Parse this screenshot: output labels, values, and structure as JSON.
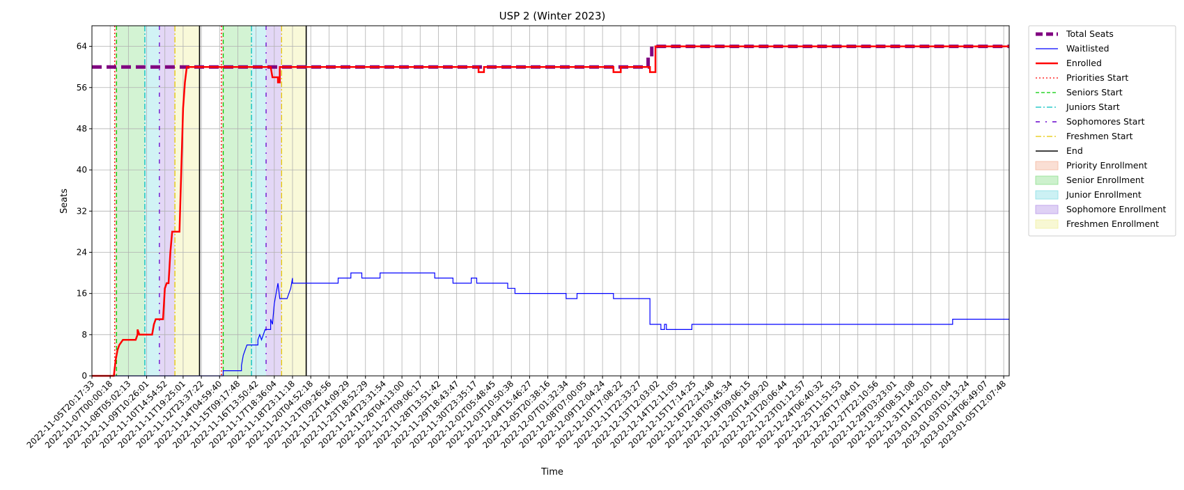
{
  "chart_data": {
    "type": "line",
    "title": "USP 2 (Winter 2023)",
    "xlabel": "Time",
    "ylabel": "Seats",
    "ylim": [
      0,
      68
    ],
    "yticks": [
      0,
      8,
      16,
      24,
      32,
      40,
      48,
      56,
      64
    ],
    "grid": true,
    "legend_placement": "outside-right",
    "x_tick_labels": [
      "2022-11-05T20:17:33",
      "2022-11-07T00:00:18",
      "2022-11-08T05:02:13",
      "2022-11-09T10:26:01",
      "2022-11-10T14:54:52",
      "2022-11-11T19:25:01",
      "2022-11-12T23:37:22",
      "2022-11-14T04:59:40",
      "2022-11-15T09:17:48",
      "2022-11-16T13:50:42",
      "2022-11-17T18:36:04",
      "2022-11-18T23:11:18",
      "2022-11-20T04:52:18",
      "2022-11-21T09:26:56",
      "2022-11-22T14:09:29",
      "2022-11-23T18:52:29",
      "2022-11-24T23:31:54",
      "2022-11-26T04:13:00",
      "2022-11-27T09:06:17",
      "2022-11-28T13:51:42",
      "2022-11-29T18:43:47",
      "2022-11-30T23:35:17",
      "2022-12-02T05:48:45",
      "2022-12-03T10:50:38",
      "2022-12-04T15:46:27",
      "2022-12-05T20:38:16",
      "2022-12-07T01:32:34",
      "2022-12-08T07:00:05",
      "2022-12-09T12:04:24",
      "2022-12-10T17:08:22",
      "2022-12-11T22:33:27",
      "2022-12-13T12:03:02",
      "2022-12-14T12:11:05",
      "2022-12-15T17:14:25",
      "2022-12-16T22:21:48",
      "2022-12-18T03:45:34",
      "2022-12-19T09:06:15",
      "2022-12-20T14:09:20",
      "2022-12-21T20:06:44",
      "2022-12-23T01:12:57",
      "2022-12-24T06:40:32",
      "2022-12-25T11:51:53",
      "2022-12-26T17:04:01",
      "2022-12-27T22:10:56",
      "2022-12-29T03:23:01",
      "2022-12-30T08:51:08",
      "2022-12-31T14:20:01",
      "2023-01-01T20:01:04",
      "2023-01-03T01:13:24",
      "2023-01-04T06:49:07",
      "2023-01-05T12:07:48"
    ],
    "x_tick_positions": [
      0,
      1,
      2,
      3,
      4,
      5,
      6,
      7,
      8,
      9,
      10,
      11,
      12,
      13,
      14,
      15,
      16,
      17,
      18,
      19,
      20,
      21,
      22,
      23,
      24,
      25,
      26,
      27,
      28,
      29,
      30,
      31,
      32,
      33,
      34,
      35,
      36,
      37,
      38,
      39,
      40,
      41,
      42,
      43,
      44,
      45,
      46,
      47,
      48,
      49,
      50
    ],
    "xlim": [
      0,
      50.3
    ],
    "series": [
      {
        "name": "Total Seats",
        "color": "#800080",
        "style": "dashed",
        "points": [
          [
            0,
            60
          ],
          [
            30.5,
            60
          ],
          [
            30.5,
            62
          ],
          [
            30.7,
            62
          ],
          [
            30.7,
            64
          ],
          [
            50.3,
            64
          ]
        ]
      },
      {
        "name": "Waitlisted",
        "color": "#0000ff",
        "style": "solid",
        "points": [
          [
            0,
            0
          ],
          [
            7.2,
            0
          ],
          [
            7.2,
            1
          ],
          [
            8.2,
            1
          ],
          [
            8.2,
            2
          ],
          [
            8.3,
            4
          ],
          [
            8.4,
            5
          ],
          [
            8.5,
            6
          ],
          [
            9.1,
            6
          ],
          [
            9.1,
            7
          ],
          [
            9.2,
            8
          ],
          [
            9.3,
            7
          ],
          [
            9.4,
            8
          ],
          [
            9.5,
            9
          ],
          [
            9.8,
            9
          ],
          [
            9.8,
            11
          ],
          [
            9.9,
            10
          ],
          [
            10.0,
            14
          ],
          [
            10.1,
            16
          ],
          [
            10.2,
            18
          ],
          [
            10.3,
            15
          ],
          [
            10.7,
            15
          ],
          [
            10.8,
            16
          ],
          [
            10.9,
            17
          ],
          [
            11.0,
            19
          ],
          [
            11.0,
            18
          ],
          [
            13.5,
            18
          ],
          [
            13.5,
            19
          ],
          [
            14.2,
            19
          ],
          [
            14.2,
            20
          ],
          [
            14.8,
            20
          ],
          [
            14.8,
            19
          ],
          [
            15.8,
            19
          ],
          [
            15.8,
            20
          ],
          [
            18.8,
            20
          ],
          [
            18.8,
            19
          ],
          [
            19.8,
            19
          ],
          [
            19.8,
            18
          ],
          [
            20.8,
            18
          ],
          [
            20.8,
            19
          ],
          [
            21.1,
            19
          ],
          [
            21.1,
            18
          ],
          [
            22.8,
            18
          ],
          [
            22.8,
            17
          ],
          [
            23.2,
            17
          ],
          [
            23.2,
            16
          ],
          [
            26.0,
            16
          ],
          [
            26.0,
            15
          ],
          [
            26.6,
            15
          ],
          [
            26.6,
            16
          ],
          [
            28.6,
            16
          ],
          [
            28.6,
            15
          ],
          [
            30.6,
            15
          ],
          [
            30.6,
            10
          ],
          [
            31.2,
            10
          ],
          [
            31.2,
            9
          ],
          [
            31.4,
            9
          ],
          [
            31.4,
            10
          ],
          [
            31.5,
            10
          ],
          [
            31.5,
            9
          ],
          [
            32.9,
            9
          ],
          [
            32.9,
            10
          ],
          [
            47.2,
            10
          ],
          [
            47.2,
            11
          ],
          [
            50.3,
            11
          ]
        ]
      },
      {
        "name": "Enrolled",
        "color": "#ff0000",
        "style": "solid",
        "points": [
          [
            0,
            0
          ],
          [
            1.2,
            0
          ],
          [
            1.3,
            3
          ],
          [
            1.4,
            5
          ],
          [
            1.5,
            6
          ],
          [
            1.7,
            7
          ],
          [
            2.4,
            7
          ],
          [
            2.5,
            8
          ],
          [
            2.5,
            9
          ],
          [
            2.6,
            8
          ],
          [
            3.3,
            8
          ],
          [
            3.4,
            10
          ],
          [
            3.5,
            11
          ],
          [
            3.9,
            11
          ],
          [
            4.0,
            17
          ],
          [
            4.1,
            18
          ],
          [
            4.2,
            18
          ],
          [
            4.3,
            24
          ],
          [
            4.4,
            28
          ],
          [
            4.8,
            28
          ],
          [
            4.9,
            40
          ],
          [
            5.0,
            52
          ],
          [
            5.1,
            57
          ],
          [
            5.2,
            60
          ],
          [
            9.8,
            60
          ],
          [
            9.9,
            58
          ],
          [
            10.2,
            58
          ],
          [
            10.2,
            57
          ],
          [
            10.3,
            57
          ],
          [
            10.3,
            60
          ],
          [
            21.2,
            60
          ],
          [
            21.2,
            59
          ],
          [
            21.5,
            59
          ],
          [
            21.5,
            60
          ],
          [
            28.6,
            60
          ],
          [
            28.6,
            59
          ],
          [
            29.0,
            59
          ],
          [
            29.0,
            60
          ],
          [
            30.6,
            60
          ],
          [
            30.6,
            59
          ],
          [
            30.9,
            59
          ],
          [
            30.9,
            64
          ],
          [
            50.3,
            64
          ]
        ]
      }
    ],
    "vertical_markers": [
      {
        "name": "Priorities Start",
        "color": "#ff0000",
        "style": "dotted",
        "x": [
          1.25,
          7.1
        ]
      },
      {
        "name": "Seniors Start",
        "color": "#00cc00",
        "style": "dashed",
        "x": [
          1.35,
          7.2
        ]
      },
      {
        "name": "Juniors Start",
        "color": "#00bfbf",
        "style": "dashdot",
        "x": [
          2.9,
          8.75
        ]
      },
      {
        "name": "Sophomores Start",
        "color": "#6600cc",
        "style": "loosedash",
        "x": [
          3.7,
          9.55
        ]
      },
      {
        "name": "Freshmen Start",
        "color": "#e6c800",
        "style": "dashdot",
        "x": [
          4.55,
          10.4
        ]
      },
      {
        "name": "End",
        "color": "#000000",
        "style": "solid",
        "x": [
          5.9,
          11.75
        ]
      }
    ],
    "shaded_regions": [
      {
        "name": "Priority Enrollment",
        "color": "#f4b8a0",
        "ranges": [
          [
            1.25,
            1.35
          ],
          [
            7.1,
            7.2
          ]
        ]
      },
      {
        "name": "Senior Enrollment",
        "color": "#90e090",
        "ranges": [
          [
            1.35,
            2.9
          ],
          [
            7.2,
            8.75
          ]
        ]
      },
      {
        "name": "Junior Enrollment",
        "color": "#8de0e6",
        "ranges": [
          [
            2.9,
            3.7
          ],
          [
            8.75,
            9.55
          ]
        ]
      },
      {
        "name": "Sophomore Enrollment",
        "color": "#b99ae8",
        "ranges": [
          [
            3.7,
            4.55
          ],
          [
            9.55,
            10.4
          ]
        ]
      },
      {
        "name": "Freshmen Enrollment",
        "color": "#f0f0a0",
        "ranges": [
          [
            4.55,
            5.9
          ],
          [
            10.4,
            11.75
          ]
        ]
      }
    ],
    "legend": [
      {
        "label": "Total Seats",
        "kind": "line",
        "color": "#800080",
        "style": "dashed",
        "width": 5
      },
      {
        "label": "Waitlisted",
        "kind": "line",
        "color": "#0000ff",
        "style": "solid",
        "width": 1.2
      },
      {
        "label": "Enrolled",
        "kind": "line",
        "color": "#ff0000",
        "style": "solid",
        "width": 2.5
      },
      {
        "label": "Priorities Start",
        "kind": "line",
        "color": "#ff0000",
        "style": "dotted",
        "width": 1.3
      },
      {
        "label": "Seniors Start",
        "kind": "line",
        "color": "#00cc00",
        "style": "dashed",
        "width": 1.3
      },
      {
        "label": "Juniors Start",
        "kind": "line",
        "color": "#00bfbf",
        "style": "dashdot",
        "width": 1.3
      },
      {
        "label": "Sophomores Start",
        "kind": "line",
        "color": "#6600cc",
        "style": "loosedash",
        "width": 1.5
      },
      {
        "label": "Freshmen Start",
        "kind": "line",
        "color": "#e6c800",
        "style": "dashdot",
        "width": 1.3
      },
      {
        "label": "End",
        "kind": "line",
        "color": "#000000",
        "style": "solid",
        "width": 1.6
      },
      {
        "label": "Priority Enrollment",
        "kind": "patch",
        "color": "#f4b8a0"
      },
      {
        "label": "Senior Enrollment",
        "kind": "patch",
        "color": "#90e090"
      },
      {
        "label": "Junior Enrollment",
        "kind": "patch",
        "color": "#8de0e6"
      },
      {
        "label": "Sophomore Enrollment",
        "kind": "patch",
        "color": "#b99ae8"
      },
      {
        "label": "Freshmen Enrollment",
        "kind": "patch",
        "color": "#f0f0a0"
      }
    ]
  }
}
